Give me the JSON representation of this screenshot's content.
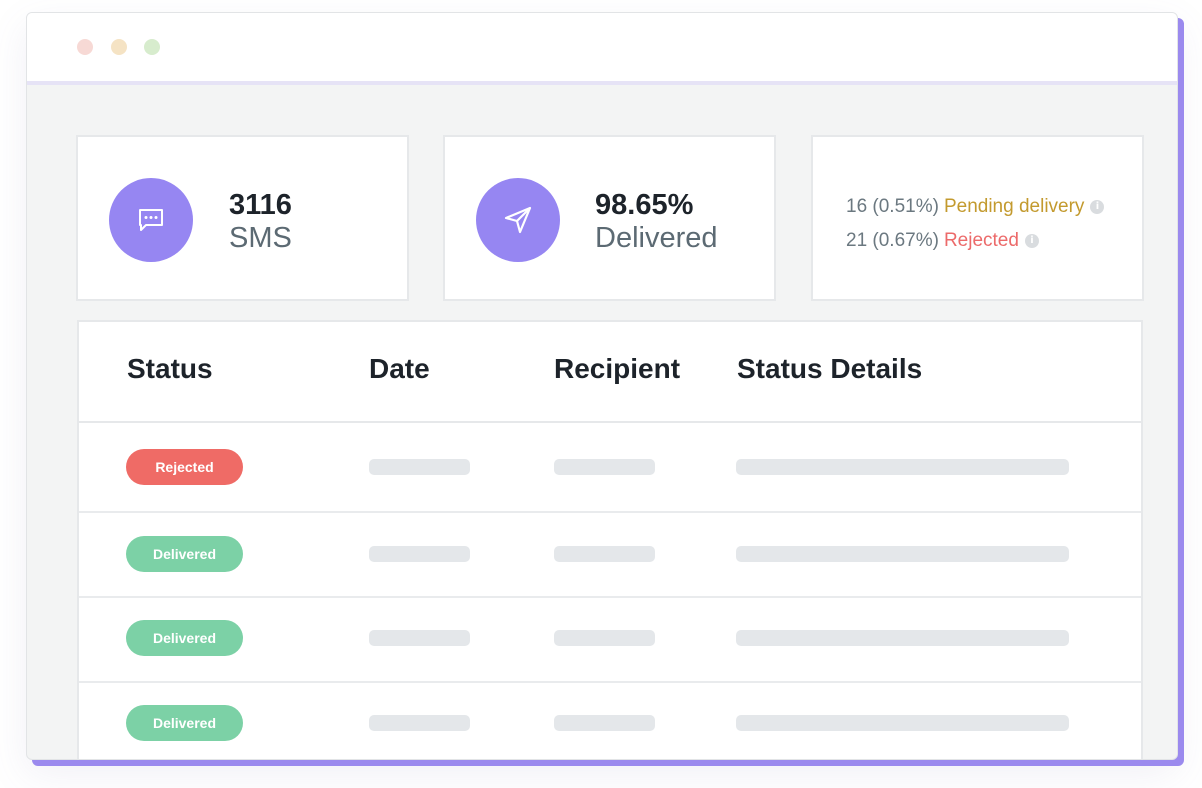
{
  "stats": {
    "sms": {
      "value": "3116",
      "label": "SMS",
      "icon": "chat-bubble-icon"
    },
    "delivered": {
      "value": "98.65%",
      "label": "Delivered",
      "icon": "send-icon"
    },
    "pending": {
      "count": "16 (0.51%)",
      "label": "Pending delivery"
    },
    "rejected": {
      "count": "21 (0.67%)",
      "label": "Rejected"
    }
  },
  "table": {
    "headers": [
      "Status",
      "Date",
      "Recipient",
      "Status Details"
    ],
    "rows": [
      {
        "status": "Rejected"
      },
      {
        "status": "Delivered"
      },
      {
        "status": "Delivered"
      },
      {
        "status": "Delivered"
      }
    ]
  },
  "colors": {
    "accent": "#9686f2",
    "rejected": "#ef6b66",
    "delivered": "#7cd1a6",
    "pending": "#c39a2e"
  }
}
